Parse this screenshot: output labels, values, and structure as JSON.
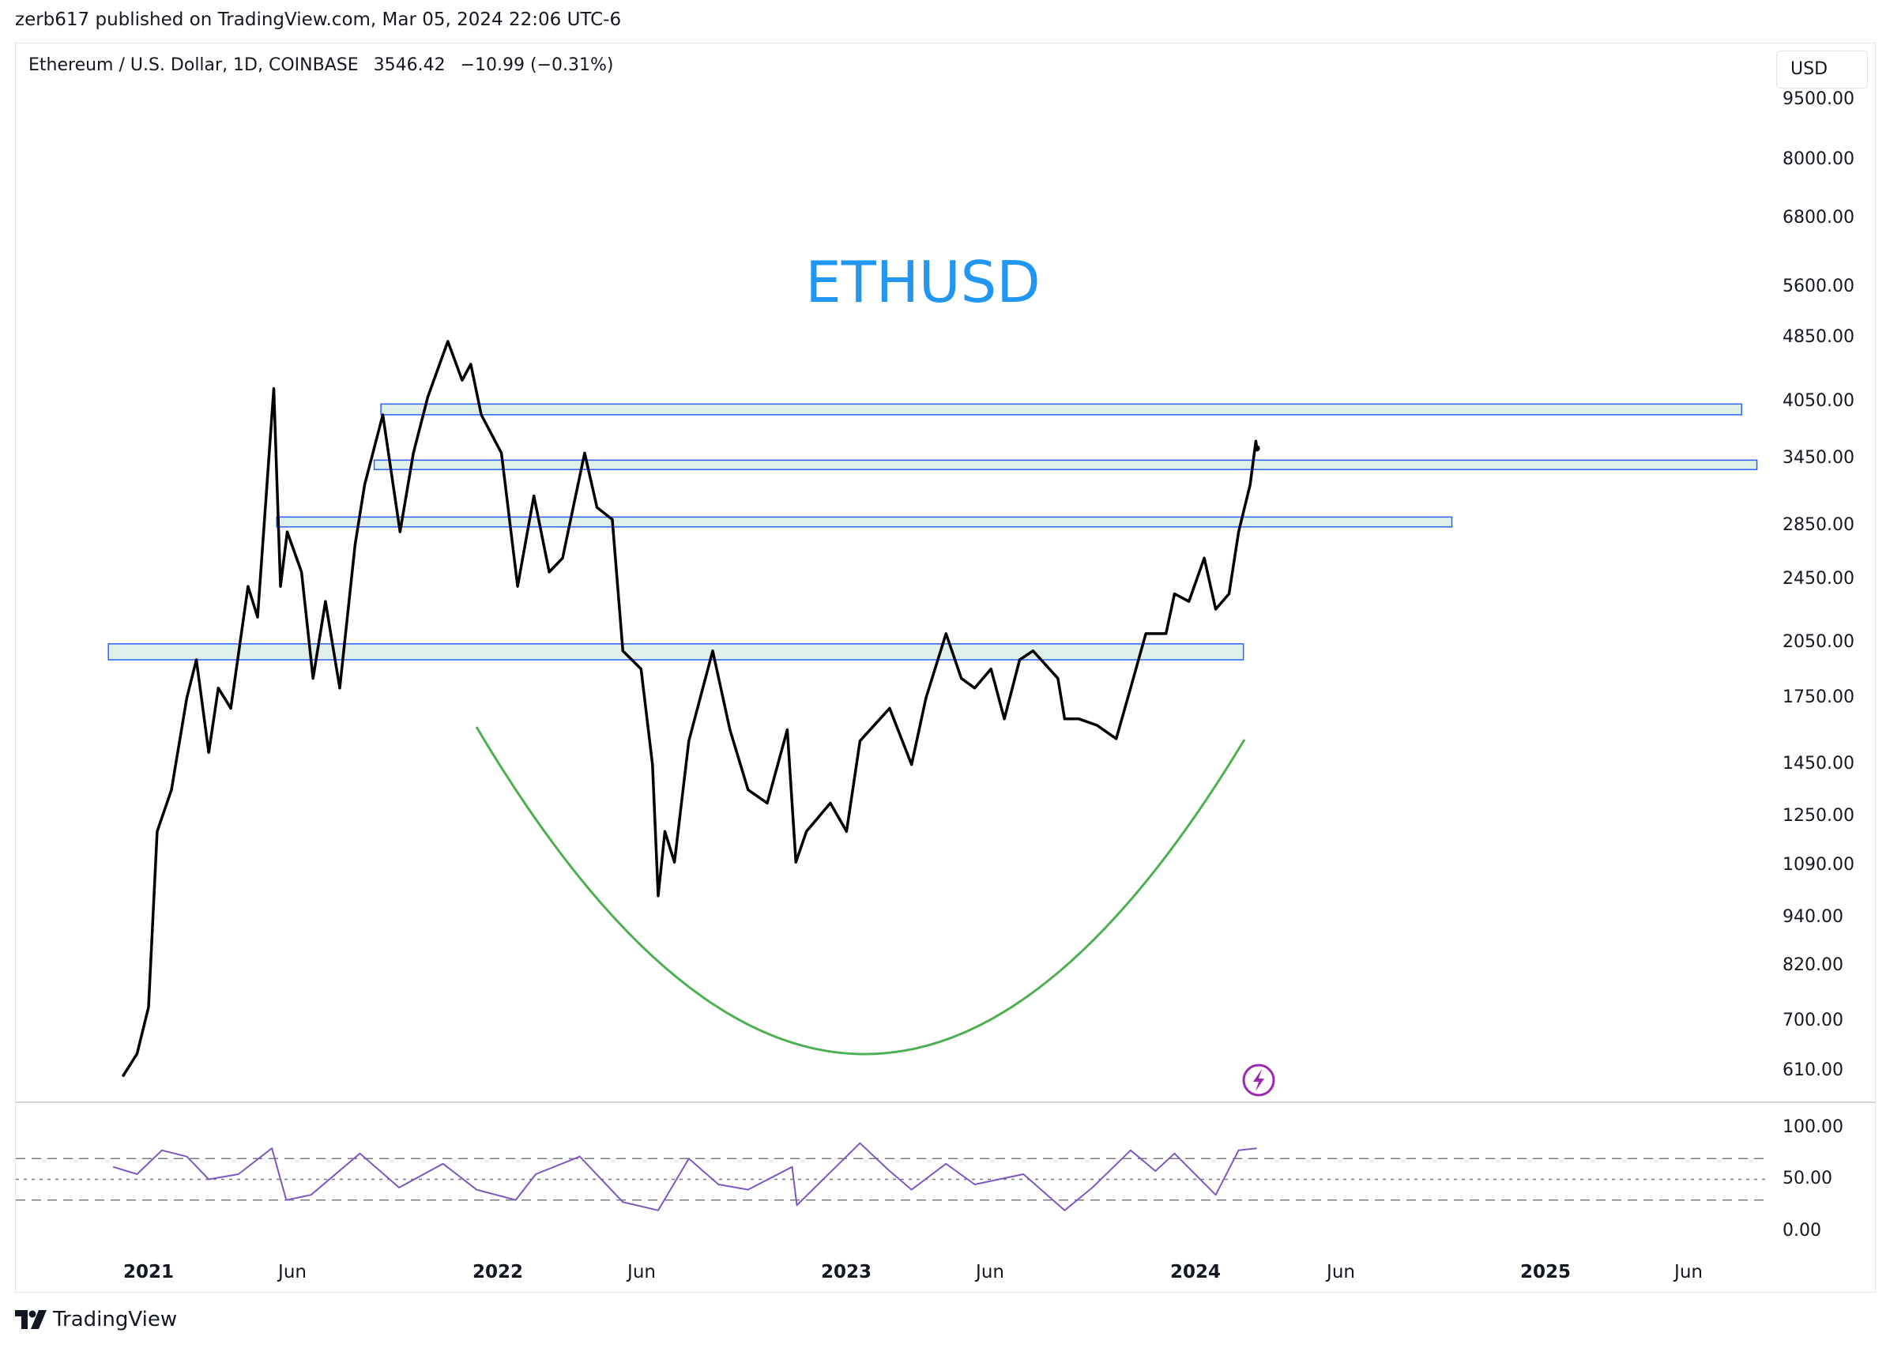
{
  "publish_line": "zerb617 published on TradingView.com, Mar 05, 2024 22:06 UTC-6",
  "legend": {
    "symbol": "Ethereum / U.S. Dollar, 1D, COINBASE",
    "last": "3546.42",
    "change": "−10.99 (−0.31%)"
  },
  "currency_button": "USD",
  "brand": "TradingView",
  "icons": {
    "brand_logo": "tradingview-logo-icon",
    "flash": "lightning-icon"
  },
  "colors": {
    "price_line": "#000000",
    "zone_fill": "#dff0e8",
    "zone_border": "#2962ff",
    "curve": "#4caf50",
    "title": "#2196f3",
    "rsi_line": "#7e57c2",
    "rsi_band": "#787b86",
    "flash_icon": "#9c27b0"
  },
  "chart_data": {
    "type": "line",
    "title": "ETHUSD",
    "y_scale": "log",
    "price_axis_labels": [
      "9500.00",
      "8000.00",
      "6800.00",
      "5600.00",
      "4850.00",
      "4050.00",
      "3450.00",
      "2850.00",
      "2450.00",
      "2050.00",
      "1750.00",
      "1450.00",
      "1250.00",
      "1090.00",
      "940.00",
      "820.00",
      "700.00",
      "610.00"
    ],
    "time_axis": [
      {
        "label": "2021",
        "year": true
      },
      {
        "label": "Jun",
        "year": false
      },
      {
        "label": "2022",
        "year": true
      },
      {
        "label": "Jun",
        "year": false
      },
      {
        "label": "2023",
        "year": true
      },
      {
        "label": "Jun",
        "year": false
      },
      {
        "label": "2024",
        "year": true
      },
      {
        "label": "Jun",
        "year": false
      },
      {
        "label": "2025",
        "year": true
      },
      {
        "label": "Jun",
        "year": false
      }
    ],
    "series": [
      {
        "values": [
          [
            "2020-12-05",
            600
          ],
          [
            "2020-12-20",
            640
          ],
          [
            "2021-01-01",
            730
          ],
          [
            "2021-01-10",
            1200
          ],
          [
            "2021-01-25",
            1350
          ],
          [
            "2021-02-10",
            1750
          ],
          [
            "2021-02-20",
            1950
          ],
          [
            "2021-03-05",
            1500
          ],
          [
            "2021-03-15",
            1800
          ],
          [
            "2021-03-28",
            1700
          ],
          [
            "2021-04-15",
            2400
          ],
          [
            "2021-04-25",
            2200
          ],
          [
            "2021-05-12",
            4200
          ],
          [
            "2021-05-19",
            2400
          ],
          [
            "2021-05-26",
            2800
          ],
          [
            "2021-06-10",
            2500
          ],
          [
            "2021-06-22",
            1850
          ],
          [
            "2021-07-05",
            2300
          ],
          [
            "2021-07-20",
            1800
          ],
          [
            "2021-08-05",
            2700
          ],
          [
            "2021-08-15",
            3200
          ],
          [
            "2021-09-03",
            3900
          ],
          [
            "2021-09-21",
            2800
          ],
          [
            "2021-10-05",
            3500
          ],
          [
            "2021-10-20",
            4100
          ],
          [
            "2021-11-10",
            4800
          ],
          [
            "2021-11-25",
            4300
          ],
          [
            "2021-12-04",
            4500
          ],
          [
            "2021-12-15",
            3900
          ],
          [
            "2022-01-05",
            3500
          ],
          [
            "2022-01-22",
            2400
          ],
          [
            "2022-02-08",
            3100
          ],
          [
            "2022-02-24",
            2500
          ],
          [
            "2022-03-10",
            2600
          ],
          [
            "2022-04-02",
            3500
          ],
          [
            "2022-04-15",
            3000
          ],
          [
            "2022-05-01",
            2900
          ],
          [
            "2022-05-12",
            2000
          ],
          [
            "2022-05-31",
            1900
          ],
          [
            "2022-06-12",
            1450
          ],
          [
            "2022-06-18",
            1000
          ],
          [
            "2022-06-25",
            1200
          ],
          [
            "2022-07-05",
            1100
          ],
          [
            "2022-07-20",
            1550
          ],
          [
            "2022-08-14",
            2000
          ],
          [
            "2022-09-01",
            1600
          ],
          [
            "2022-09-20",
            1350
          ],
          [
            "2022-10-10",
            1300
          ],
          [
            "2022-10-31",
            1600
          ],
          [
            "2022-11-09",
            1100
          ],
          [
            "2022-11-20",
            1200
          ],
          [
            "2022-12-15",
            1300
          ],
          [
            "2023-01-01",
            1200
          ],
          [
            "2023-01-15",
            1550
          ],
          [
            "2023-02-15",
            1700
          ],
          [
            "2023-03-10",
            1450
          ],
          [
            "2023-03-25",
            1750
          ],
          [
            "2023-04-15",
            2100
          ],
          [
            "2023-05-01",
            1850
          ],
          [
            "2023-05-15",
            1800
          ],
          [
            "2023-06-01",
            1900
          ],
          [
            "2023-06-15",
            1650
          ],
          [
            "2023-07-01",
            1950
          ],
          [
            "2023-07-15",
            2000
          ],
          [
            "2023-08-10",
            1850
          ],
          [
            "2023-08-17",
            1650
          ],
          [
            "2023-09-01",
            1650
          ],
          [
            "2023-09-20",
            1620
          ],
          [
            "2023-10-10",
            1560
          ],
          [
            "2023-10-25",
            1800
          ],
          [
            "2023-11-10",
            2100
          ],
          [
            "2023-12-01",
            2100
          ],
          [
            "2023-12-10",
            2350
          ],
          [
            "2023-12-25",
            2300
          ],
          [
            "2024-01-10",
            2600
          ],
          [
            "2024-01-22",
            2250
          ],
          [
            "2024-02-05",
            2350
          ],
          [
            "2024-02-15",
            2800
          ],
          [
            "2024-02-27",
            3200
          ],
          [
            "2024-03-04",
            3620
          ],
          [
            "2024-03-05",
            3546.42
          ]
        ]
      }
    ],
    "zones": [
      {
        "low": 3900,
        "high": 4020,
        "from": "2021-09-01",
        "to": "2025-07-25"
      },
      {
        "low": 3340,
        "high": 3430,
        "from": "2021-08-25",
        "to": "2025-08-10"
      },
      {
        "low": 2840,
        "high": 2920,
        "from": "2021-05-15",
        "to": "2024-09-25"
      },
      {
        "low": 1950,
        "high": 2040,
        "from": "2020-11-20",
        "to": "2024-02-20"
      }
    ],
    "rsi": {
      "y_labels": [
        "100.00",
        "50.00",
        "0.00"
      ],
      "bands": [
        70,
        50,
        30
      ],
      "values": [
        [
          "2020-11-25",
          62
        ],
        [
          "2020-12-20",
          55
        ],
        [
          "2021-01-15",
          78
        ],
        [
          "2021-02-10",
          72
        ],
        [
          "2021-03-05",
          50
        ],
        [
          "2021-04-05",
          55
        ],
        [
          "2021-05-10",
          80
        ],
        [
          "2021-05-25",
          30
        ],
        [
          "2021-06-20",
          35
        ],
        [
          "2021-08-10",
          75
        ],
        [
          "2021-09-20",
          42
        ],
        [
          "2021-11-05",
          65
        ],
        [
          "2021-12-10",
          40
        ],
        [
          "2022-01-20",
          30
        ],
        [
          "2022-02-10",
          55
        ],
        [
          "2022-03-28",
          72
        ],
        [
          "2022-05-12",
          28
        ],
        [
          "2022-06-18",
          20
        ],
        [
          "2022-07-20",
          70
        ],
        [
          "2022-08-20",
          45
        ],
        [
          "2022-09-20",
          40
        ],
        [
          "2022-11-05",
          62
        ],
        [
          "2022-11-10",
          25
        ],
        [
          "2023-01-15",
          85
        ],
        [
          "2023-02-15",
          58
        ],
        [
          "2023-03-10",
          40
        ],
        [
          "2023-04-15",
          65
        ],
        [
          "2023-05-15",
          45
        ],
        [
          "2023-07-05",
          55
        ],
        [
          "2023-08-17",
          20
        ],
        [
          "2023-09-15",
          42
        ],
        [
          "2023-10-25",
          78
        ],
        [
          "2023-11-20",
          58
        ],
        [
          "2023-12-10",
          75
        ],
        [
          "2024-01-22",
          35
        ],
        [
          "2024-02-15",
          78
        ],
        [
          "2024-03-05",
          80
        ]
      ]
    }
  }
}
